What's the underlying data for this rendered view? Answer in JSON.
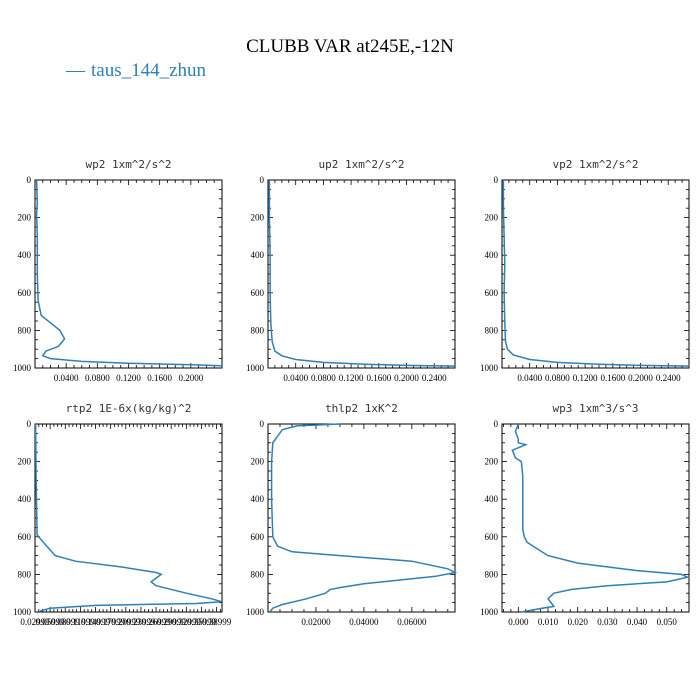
{
  "figure": {
    "title": "CLUBB VAR at245E,-12N",
    "legend_label": "taus_144_zhun",
    "line_color": "#2f7fb8"
  },
  "chart_data": [
    {
      "type": "line",
      "title": "wp2  1xm^2/s^2",
      "xlim": [
        0,
        0.24
      ],
      "ylim": [
        1000,
        0
      ],
      "xticks": [
        0.04,
        0.08,
        0.12,
        0.16,
        0.2
      ],
      "xtick_labels": [
        "0.0400",
        "0.0800",
        "0.1200",
        "0.1600",
        "0.2000"
      ],
      "yticks": [
        0,
        200,
        400,
        600,
        800,
        1000
      ],
      "series": [
        {
          "x": [
            0.002,
            0.003,
            0.002,
            0.003,
            0.003,
            0.004,
            0.008,
            0.02,
            0.032,
            0.038,
            0.03,
            0.014,
            0.01,
            0.02,
            0.06,
            0.12,
            0.2,
            0.24
          ],
          "y": [
            0,
            120,
            180,
            300,
            500,
            640,
            720,
            760,
            800,
            845,
            885,
            910,
            935,
            950,
            965,
            975,
            983,
            988
          ]
        }
      ]
    },
    {
      "type": "line",
      "title": "up2  1xm^2/s^2",
      "xlim": [
        0,
        0.27
      ],
      "ylim": [
        1000,
        0
      ],
      "xticks": [
        0.04,
        0.08,
        0.12,
        0.16,
        0.2,
        0.24
      ],
      "xtick_labels": [
        "0.0400",
        "0.0800",
        "0.1200",
        "0.1600",
        "0.2000",
        "0.2400"
      ],
      "yticks": [
        0,
        200,
        400,
        600,
        800,
        1000
      ],
      "series": [
        {
          "x": [
            0.002,
            0.002,
            0.003,
            0.003,
            0.004,
            0.006,
            0.01,
            0.02,
            0.04,
            0.08,
            0.14,
            0.2,
            0.27
          ],
          "y": [
            0,
            200,
            400,
            600,
            760,
            860,
            910,
            935,
            955,
            970,
            980,
            986,
            990
          ]
        }
      ]
    },
    {
      "type": "line",
      "title": "vp2  1xm^2/s^2",
      "xlim": [
        0,
        0.27
      ],
      "ylim": [
        1000,
        0
      ],
      "xticks": [
        0.04,
        0.08,
        0.12,
        0.16,
        0.2,
        0.24
      ],
      "xtick_labels": [
        "0.0400",
        "0.0800",
        "0.1200",
        "0.1600",
        "0.2000",
        "0.2400"
      ],
      "yticks": [
        0,
        200,
        400,
        600,
        800,
        1000
      ],
      "series": [
        {
          "x": [
            0.002,
            0.002,
            0.003,
            0.004,
            0.003,
            0.004,
            0.005,
            0.008,
            0.016,
            0.04,
            0.08,
            0.14,
            0.2,
            0.27
          ],
          "y": [
            0,
            150,
            300,
            450,
            600,
            760,
            860,
            900,
            930,
            955,
            970,
            980,
            986,
            990
          ]
        }
      ]
    },
    {
      "type": "line",
      "title": "rtp2  1E-6x(kg/kg)^2",
      "xlim": [
        0.0299,
        0.4006
      ],
      "ylim": [
        1000,
        0
      ],
      "xticks": [
        0.0299,
        0.0599,
        0.0899,
        0.1199,
        0.1499,
        0.1799,
        0.2099,
        0.2399,
        0.2699,
        0.2999,
        0.3299,
        0.3599,
        0.3899
      ],
      "xtick_labels": [
        "0.02999",
        "0.05999",
        "0.08999",
        "0.11999",
        "0.14999",
        "0.17999",
        "0.20999",
        "0.23999",
        "0.26999",
        "0.29999",
        "0.32999",
        "0.35999",
        "0.38999"
      ],
      "yticks": [
        0,
        200,
        400,
        600,
        800,
        1000
      ],
      "series": [
        {
          "x": [
            0.031,
            0.032,
            0.034,
            0.05,
            0.07,
            0.11,
            0.2,
            0.27,
            0.28,
            0.26,
            0.27,
            0.33,
            0.38,
            0.4,
            0.35,
            0.15,
            0.06,
            0.04
          ],
          "y": [
            0,
            300,
            590,
            640,
            700,
            730,
            760,
            790,
            800,
            840,
            860,
            900,
            930,
            945,
            955,
            965,
            980,
            995
          ]
        }
      ]
    },
    {
      "type": "line",
      "title": "thlp2  1xK^2",
      "xlim": [
        0,
        0.078
      ],
      "ylim": [
        1000,
        0
      ],
      "xticks": [
        0.02,
        0.04,
        0.06
      ],
      "xtick_labels": [
        "0.02000",
        "0.04000",
        "0.06000"
      ],
      "yticks": [
        0,
        200,
        400,
        600,
        800,
        1000
      ],
      "series": [
        {
          "x": [
            0.03,
            0.012,
            0.006,
            0.002,
            0.0015,
            0.0015,
            0.002,
            0.004,
            0.01,
            0.03,
            0.06,
            0.075,
            0.078,
            0.07,
            0.04,
            0.03,
            0.026,
            0.024,
            0.016,
            0.006,
            0.002,
            0.001
          ],
          "y": [
            0,
            10,
            30,
            100,
            200,
            400,
            600,
            650,
            680,
            700,
            730,
            770,
            790,
            810,
            850,
            870,
            880,
            900,
            930,
            960,
            980,
            995
          ]
        }
      ]
    },
    {
      "type": "line",
      "title": "wp3  1xm^3/s^3",
      "xlim": [
        -0.0055,
        0.0575
      ],
      "ylim": [
        1000,
        0
      ],
      "xticks": [
        0,
        0.01,
        0.02,
        0.03,
        0.04,
        0.05
      ],
      "xtick_labels": [
        "0.000",
        "0.010",
        "0.020",
        "0.030",
        "0.040",
        "0.050"
      ],
      "yticks": [
        0,
        200,
        400,
        600,
        800,
        1000
      ],
      "series": [
        {
          "x": [
            0.0,
            -0.001,
            0.0,
            0.0,
            0.0025,
            -0.002,
            -0.001,
            0.001,
            0.0015,
            0.0015,
            0.0015,
            0.002,
            0.003,
            0.006,
            0.01,
            0.02,
            0.04,
            0.055,
            0.057,
            0.05,
            0.03,
            0.018,
            0.012,
            0.01,
            0.011,
            0.012,
            0.008,
            0.001
          ],
          "y": [
            0,
            40,
            80,
            100,
            110,
            140,
            180,
            200,
            280,
            400,
            560,
            600,
            630,
            660,
            700,
            740,
            780,
            800,
            815,
            840,
            860,
            880,
            900,
            930,
            950,
            970,
            980,
            1000
          ]
        }
      ]
    }
  ]
}
